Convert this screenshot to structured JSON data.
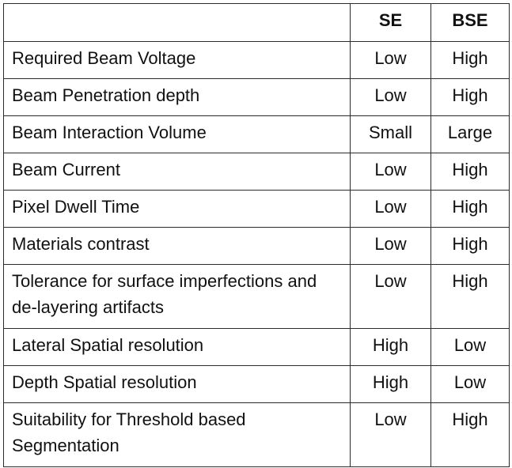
{
  "table": {
    "header": {
      "corner": "",
      "se": "SE",
      "bse": "BSE"
    },
    "rows": [
      {
        "label": "Required Beam Voltage",
        "se": "Low",
        "bse": "High"
      },
      {
        "label": "Beam Penetration depth",
        "se": "Low",
        "bse": "High"
      },
      {
        "label": "Beam Interaction Volume",
        "se": "Small",
        "bse": "Large"
      },
      {
        "label": "Beam Current",
        "se": "Low",
        "bse": "High"
      },
      {
        "label": "Pixel Dwell Time",
        "se": "Low",
        "bse": "High"
      },
      {
        "label": "Materials contrast",
        "se": "Low",
        "bse": "High"
      },
      {
        "label": "Tolerance for surface imperfections and de-layering artifacts",
        "se": "Low",
        "bse": "High"
      },
      {
        "label": "Lateral Spatial resolution",
        "se": "High",
        "bse": "Low"
      },
      {
        "label": "Depth Spatial resolution",
        "se": "High",
        "bse": "Low"
      },
      {
        "label": "Suitability for Threshold based Segmentation",
        "se": "Low",
        "bse": "High"
      }
    ]
  }
}
